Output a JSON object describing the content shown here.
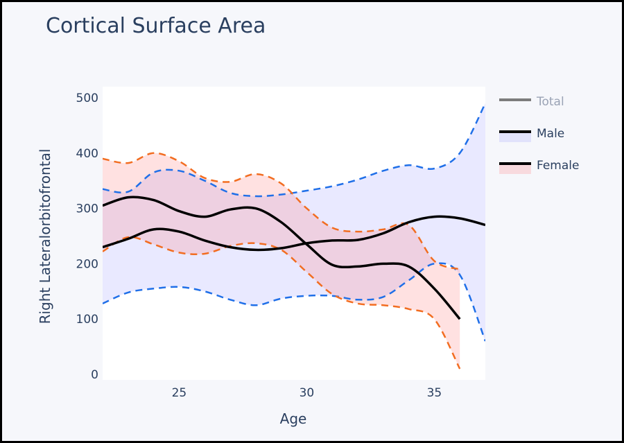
{
  "chart_data": {
    "type": "line",
    "title": "Cortical Surface Area",
    "xlabel": "Age",
    "ylabel": "Right Lateralorbitofrontal",
    "xlim": [
      22,
      37
    ],
    "ylim": [
      -10,
      520
    ],
    "xticks": [
      25,
      30,
      35
    ],
    "yticks": [
      0,
      100,
      200,
      300,
      400,
      500
    ],
    "legend_position": "right",
    "series": [
      {
        "name": "Total",
        "color": "#6f6f6f",
        "legend_only": true,
        "faded": true,
        "x": [],
        "y": []
      },
      {
        "name": "Male",
        "color": "#000000",
        "band_color": "#1f6fe8",
        "band_fill": "rgba(110,110,255,0.15)",
        "x": [
          22,
          23,
          24,
          25,
          26,
          27,
          28,
          29,
          30,
          31,
          32,
          33,
          34,
          35,
          36,
          37
        ],
        "y": [
          230,
          245,
          262,
          258,
          242,
          230,
          225,
          228,
          237,
          242,
          243,
          255,
          275,
          285,
          282,
          270
        ],
        "upper": [
          335,
          330,
          365,
          368,
          350,
          328,
          322,
          325,
          332,
          340,
          352,
          368,
          378,
          372,
          400,
          490
        ],
        "lower": [
          128,
          148,
          155,
          158,
          150,
          135,
          125,
          137,
          142,
          142,
          135,
          140,
          170,
          200,
          180,
          60
        ]
      },
      {
        "name": "Female",
        "color": "#000000",
        "band_color": "#f26d21",
        "band_fill": "rgba(255,120,120,0.22)",
        "x": [
          22,
          23,
          24,
          25,
          26,
          27,
          28,
          29,
          30,
          31,
          32,
          33,
          34,
          35,
          36
        ],
        "y": [
          305,
          320,
          315,
          295,
          285,
          298,
          300,
          275,
          235,
          198,
          195,
          200,
          195,
          155,
          100
        ],
        "upper": [
          390,
          382,
          400,
          385,
          355,
          348,
          362,
          345,
          300,
          265,
          258,
          262,
          270,
          205,
          190
        ],
        "lower": [
          222,
          248,
          235,
          220,
          218,
          232,
          237,
          225,
          185,
          145,
          128,
          125,
          118,
          100,
          10
        ]
      }
    ]
  }
}
